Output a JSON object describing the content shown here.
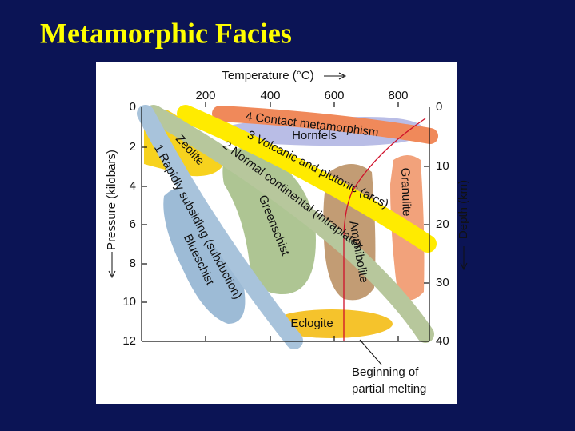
{
  "title": "Metamorphic Facies",
  "axes": {
    "temperature": {
      "label": "Temperature (°C)",
      "ticks": [
        "200",
        "400",
        "600",
        "800"
      ]
    },
    "pressure": {
      "label": "Pressure (kilobars)",
      "ticks": [
        "0",
        "2",
        "4",
        "6",
        "8",
        "10",
        "12"
      ]
    },
    "depth": {
      "label": "Depth (km)",
      "ticks": [
        "0",
        "10",
        "20",
        "30",
        "40"
      ]
    }
  },
  "facies": [
    {
      "label": "Zeolite"
    },
    {
      "label": "Blueschist"
    },
    {
      "label": "Greenschist"
    },
    {
      "label": "Amphibolite"
    },
    {
      "label": "Granulite"
    },
    {
      "label": "Eclogite"
    },
    {
      "label": "Hornfels"
    }
  ],
  "paths": [
    {
      "number": "1",
      "label": "Rapidly subsiding (subduction)"
    },
    {
      "number": "2",
      "label": "Normal continental (intraplate)"
    },
    {
      "number": "3",
      "label": "Volcanic and plutonic (arcs)"
    },
    {
      "number": "4",
      "label": "Contact metamorphism"
    }
  ],
  "annotation": {
    "lines": [
      "Beginning of",
      "partial melting"
    ]
  }
}
